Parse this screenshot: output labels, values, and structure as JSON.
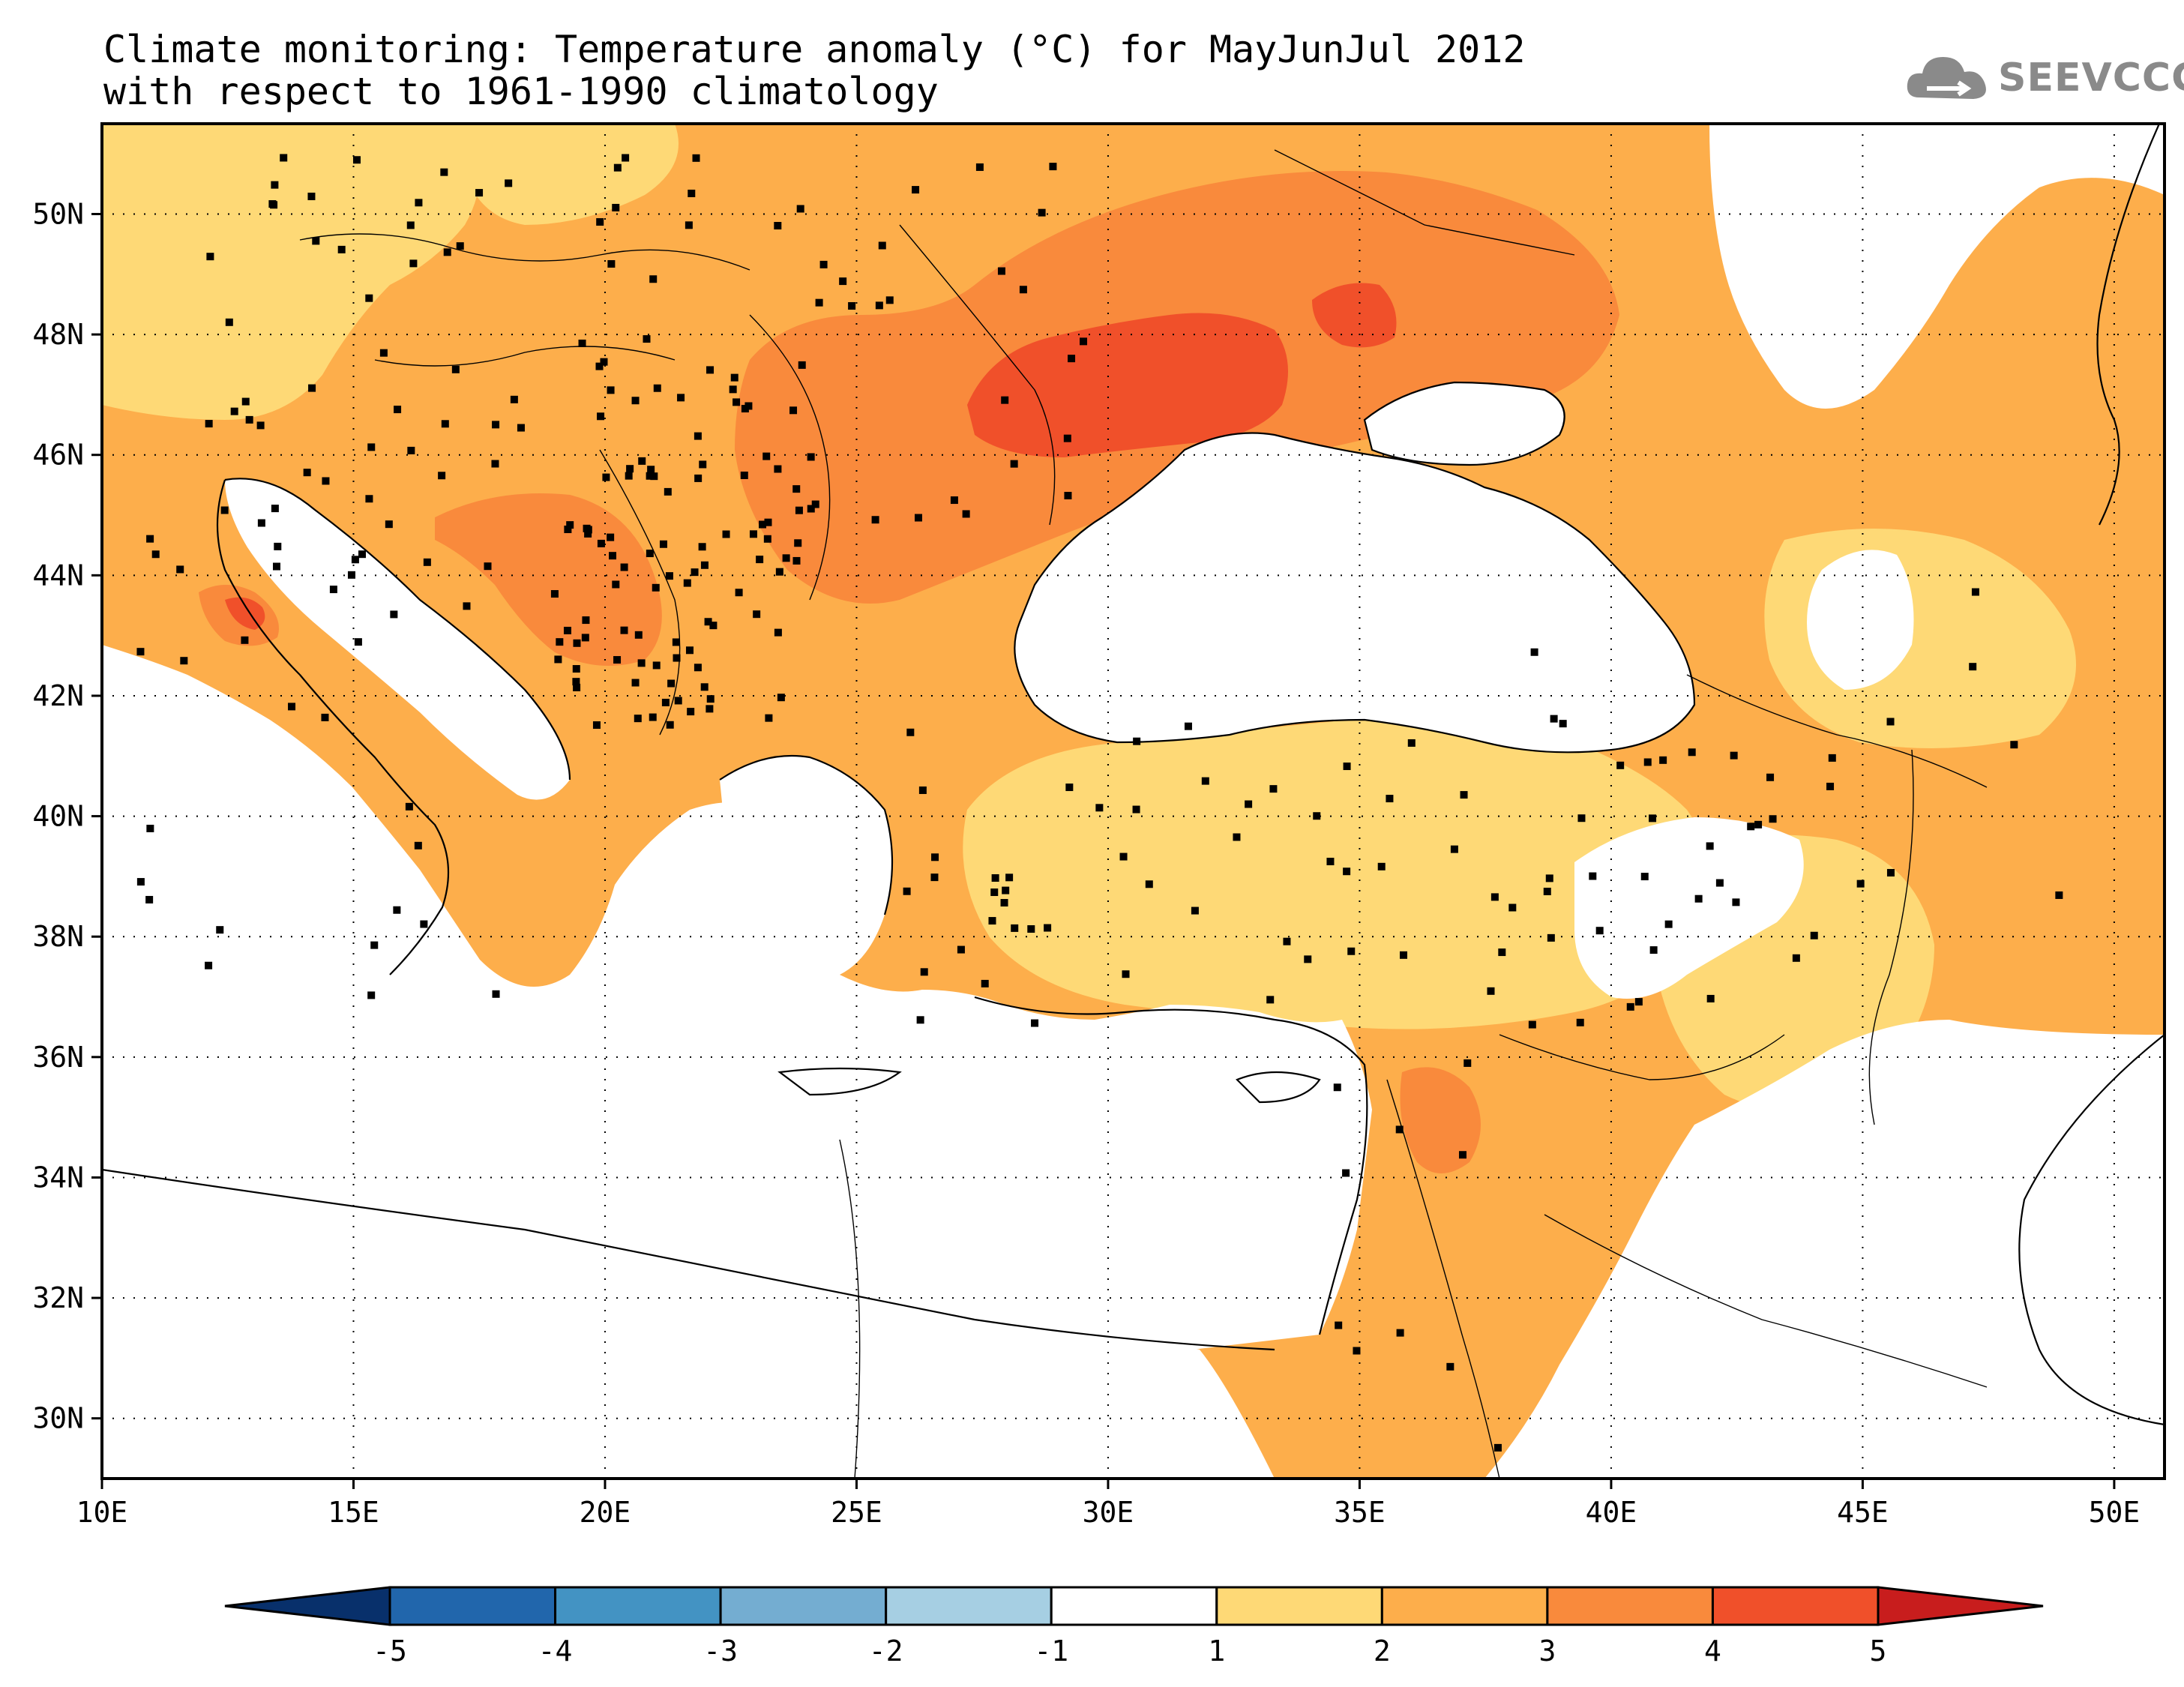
{
  "title": {
    "line1": "Climate monitoring: Temperature anomaly (°C) for MayJunJul 2012",
    "line2": "with respect to 1961-1990 climatology"
  },
  "logo": {
    "text": "SEEVCCC",
    "icon": "cloud-icon"
  },
  "map": {
    "lon_range": [
      10,
      51
    ],
    "lat_range": [
      29,
      51.5
    ],
    "lon_ticks": [
      "10E",
      "15E",
      "20E",
      "25E",
      "30E",
      "35E",
      "40E",
      "45E",
      "50E"
    ],
    "lat_ticks": [
      "30N",
      "32N",
      "34N",
      "36N",
      "38N",
      "40N",
      "42N",
      "44N",
      "46N",
      "48N",
      "50N"
    ],
    "grid": "dotted"
  },
  "colorbar": {
    "labels": [
      "-5",
      "-4",
      "-3",
      "-2",
      "-1",
      "1",
      "2",
      "3",
      "4",
      "5"
    ],
    "colors": [
      "#08306b",
      "#2166ac",
      "#4393c3",
      "#74add1",
      "#a6cfe3",
      "#ffffff",
      "#fed976",
      "#fdae4b",
      "#f98a3c",
      "#f0502a",
      "#c81d1d"
    ]
  },
  "palette": {
    "bin_1_2": "#fed976",
    "bin_2_3": "#fdae4b",
    "bin_3_4": "#f98a3c",
    "bin_4_5": "#f0502a"
  }
}
